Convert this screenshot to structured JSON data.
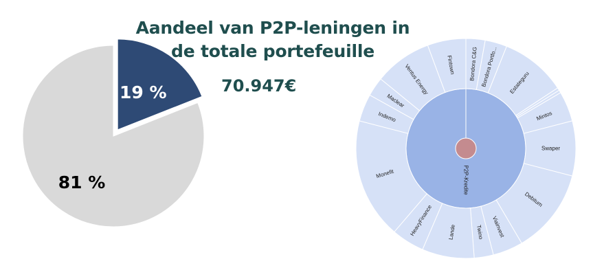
{
  "header": {
    "title_line1": "Aandeel van P2P-leningen in",
    "title_line2": "de totale portefeuille",
    "amount": "70.947€"
  },
  "colors": {
    "title_teal": "#1f4e4e",
    "p2p_navy": "#2e4a75",
    "other_gray": "#d9d9d9",
    "sunburst_inner": "#99b3e6",
    "sunburst_outer": "#d6e1f7",
    "sunburst_center": "#c48b8f",
    "sunburst_lines": "#ffffff"
  },
  "chart_data": [
    {
      "type": "pie",
      "slices": [
        {
          "label": "19 %",
          "value": 19,
          "exploded": true,
          "color": "#2e4a75",
          "text_color": "#ffffff"
        },
        {
          "label": "81 %",
          "value": 81,
          "exploded": false,
          "color": "#d9d9d9",
          "text_color": "#000000"
        }
      ]
    },
    {
      "type": "sunburst",
      "center_label": "P2P-Kredite",
      "segments": [
        {
          "name": "Bondora C&G",
          "value": 3.5
        },
        {
          "name": "Bondora Portfo...",
          "value": 4.0
        },
        {
          "name": "Estateguru",
          "value": 12.0
        },
        {
          "name": "",
          "value": 0.5
        },
        {
          "name": "",
          "value": 0.5
        },
        {
          "name": "Mintos",
          "value": 5.5
        },
        {
          "name": "Swaper",
          "value": 10.0
        },
        {
          "name": "Debitum",
          "value": 15.5
        },
        {
          "name": "Viainvest",
          "value": 5.5
        },
        {
          "name": "Twino",
          "value": 3.5
        },
        {
          "name": "Lande",
          "value": 9.5
        },
        {
          "name": "HeavyFinance",
          "value": 6.0
        },
        {
          "name": "Monefit",
          "value": 22.0
        },
        {
          "name": "Indemo",
          "value": 5.0
        },
        {
          "name": "Maclear",
          "value": 3.5
        },
        {
          "name": "Ventus Energy",
          "value": 10.5
        },
        {
          "name": "Fintown",
          "value": 7.0
        }
      ]
    }
  ]
}
